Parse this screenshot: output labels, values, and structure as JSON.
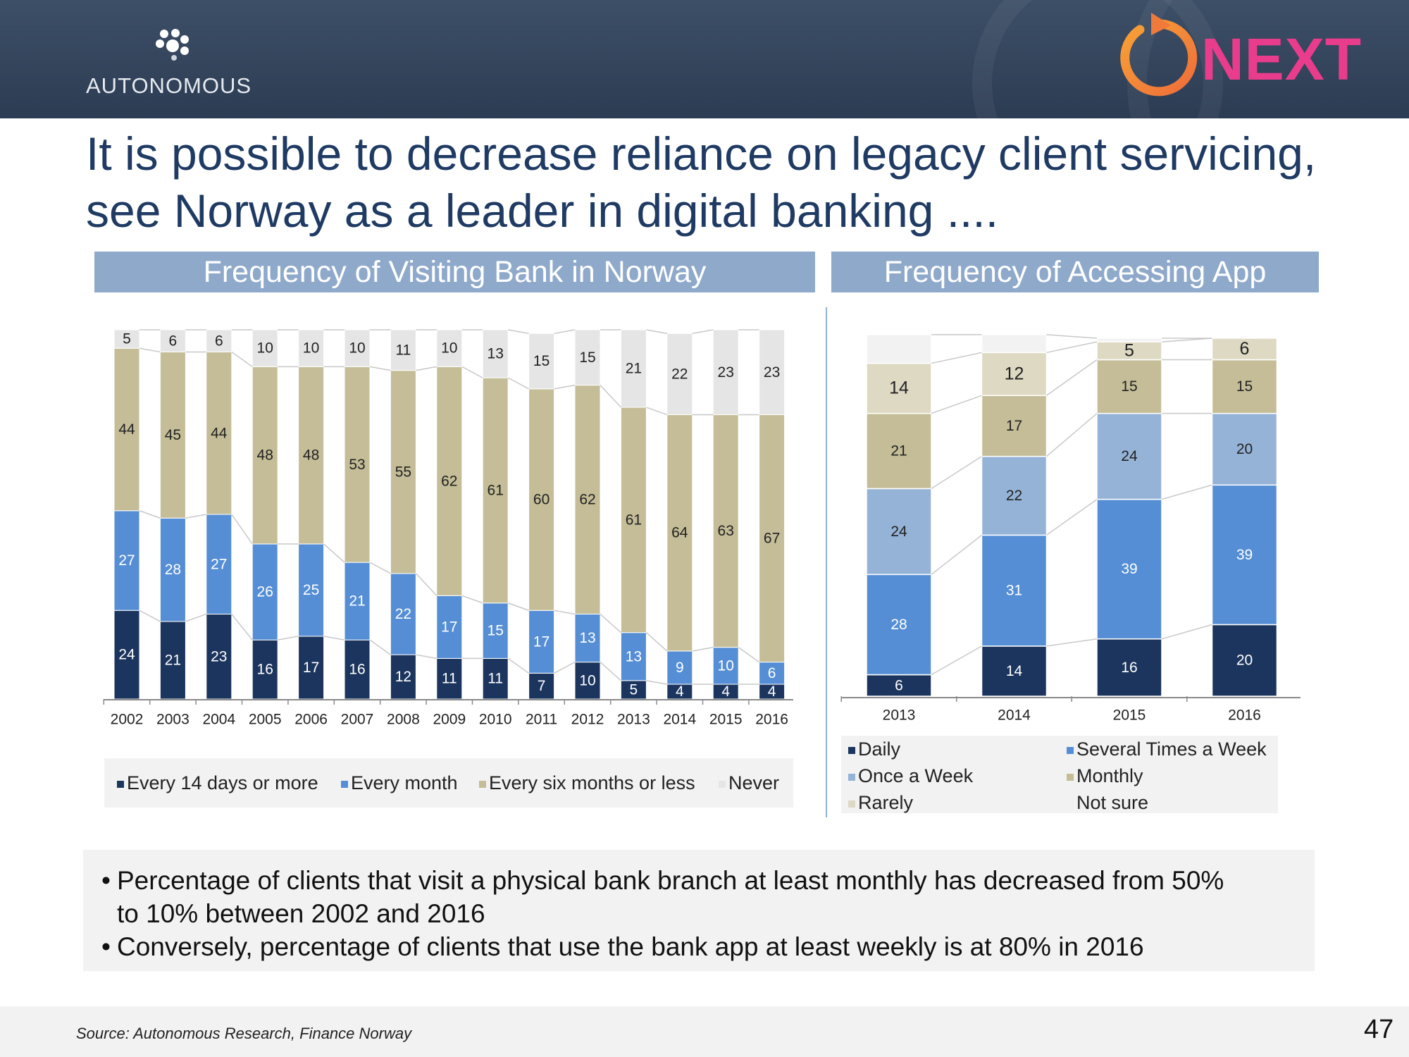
{
  "header": {
    "logo_text": "AUTONOMOUS",
    "next_logo_text": "NEXT"
  },
  "title": {
    "line1": "It is possible to decrease reliance on legacy client servicing,",
    "line2": "see Norway as a leader in digital banking ...."
  },
  "panels": {
    "left_title": "Frequency of Visiting Bank in Norway",
    "right_title": "Frequency of Accessing App"
  },
  "colors": {
    "navy": "#1c355e",
    "blue": "#558ed5",
    "lightblue": "#95b3d7",
    "khaki": "#c4bd97",
    "gray": "#e5e5e5",
    "rarely": "#ddd9c3",
    "notsure": "#f2f2f2"
  },
  "chart_data": [
    {
      "type": "bar",
      "stacked": true,
      "title": "Frequency of Visiting Bank in Norway",
      "categories": [
        "2002",
        "2003",
        "2004",
        "2005",
        "2006",
        "2007",
        "2008",
        "2009",
        "2010",
        "2011",
        "2012",
        "2013",
        "2014",
        "2015",
        "2016"
      ],
      "series": [
        {
          "name": "Every 14 days or more",
          "color": "#1c355e",
          "values": [
            24,
            21,
            23,
            16,
            17,
            16,
            12,
            11,
            11,
            7,
            10,
            5,
            4,
            4,
            4
          ]
        },
        {
          "name": "Every month",
          "color": "#558ed5",
          "values": [
            27,
            28,
            27,
            26,
            25,
            21,
            22,
            17,
            15,
            17,
            13,
            13,
            9,
            10,
            6
          ]
        },
        {
          "name": "Every six months or less",
          "color": "#c4bd97",
          "values": [
            44,
            45,
            44,
            48,
            48,
            53,
            55,
            62,
            61,
            60,
            62,
            61,
            64,
            63,
            67
          ]
        },
        {
          "name": "Never",
          "color": "#e5e5e5",
          "values": [
            5,
            6,
            6,
            10,
            10,
            10,
            11,
            10,
            13,
            15,
            15,
            21,
            22,
            23,
            23
          ]
        }
      ],
      "ylim": [
        0,
        100
      ],
      "xlabel": "",
      "ylabel": "",
      "legend": "bottom"
    },
    {
      "type": "bar",
      "stacked": true,
      "title": "Frequency of Accessing App",
      "categories": [
        "2013",
        "2014",
        "2015",
        "2016"
      ],
      "series": [
        {
          "name": "Daily",
          "color": "#1c355e",
          "values": [
            6,
            14,
            16,
            20
          ]
        },
        {
          "name": "Several Times a Week",
          "color": "#558ed5",
          "values": [
            28,
            31,
            39,
            39
          ]
        },
        {
          "name": "Once a Week",
          "color": "#95b3d7",
          "values": [
            24,
            22,
            24,
            20
          ]
        },
        {
          "name": "Monthly",
          "color": "#c4bd97",
          "values": [
            21,
            17,
            15,
            15
          ]
        },
        {
          "name": "Rarely",
          "color": "#ddd9c3",
          "values": [
            14,
            12,
            5,
            6
          ]
        },
        {
          "name": "Not sure",
          "color": "#f2f2f2",
          "values": [
            8,
            5,
            1,
            0
          ]
        }
      ],
      "hidden_labels": [
        "Not sure"
      ],
      "ylim": [
        0,
        100
      ],
      "xlabel": "",
      "ylabel": "",
      "legend": "bottom"
    }
  ],
  "bullets": [
    {
      "line1": "Percentage of clients that visit a physical bank branch at least monthly has decreased from 50%",
      "line2": "to 10% between 2002 and 2016"
    },
    {
      "line1": "Conversely, percentage of clients that use the bank app at least weekly is at 80% in 2016",
      "line2": ""
    }
  ],
  "footer": {
    "source": "Source: Autonomous Research, Finance Norway",
    "page_number": "47"
  }
}
